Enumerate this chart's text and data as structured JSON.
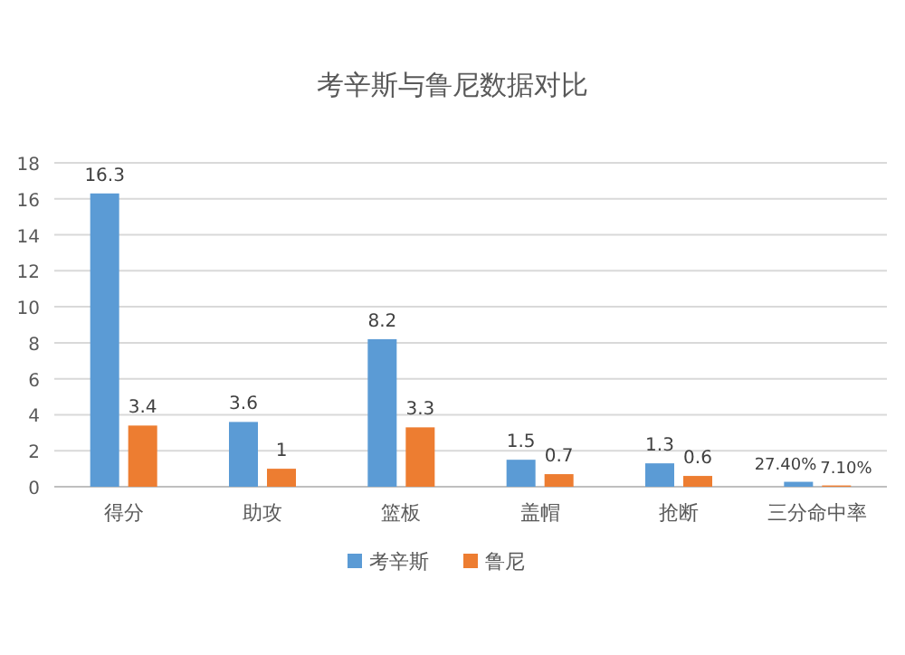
{
  "chart_data": {
    "type": "bar",
    "title": "考辛斯与鲁尼数据对比",
    "categories": [
      "得分",
      "助攻",
      "篮板",
      "盖帽",
      "抢断",
      "三分命中率"
    ],
    "series": [
      {
        "name": "考辛斯",
        "color": "#5b9bd5",
        "values": [
          16.3,
          3.6,
          8.2,
          1.5,
          1.3,
          0.274
        ],
        "value_labels": [
          "16.3",
          "3.6",
          "8.2",
          "1.5",
          "1.3",
          "27.40%"
        ]
      },
      {
        "name": "鲁尼",
        "color": "#ed7d31",
        "values": [
          3.4,
          1,
          3.3,
          0.7,
          0.6,
          0.071
        ],
        "value_labels": [
          "3.4",
          "1",
          "3.3",
          "0.7",
          "0.6",
          "7.10%"
        ]
      }
    ],
    "ylim": [
      0,
      18
    ],
    "yticks": [
      0,
      2,
      4,
      6,
      8,
      10,
      12,
      14,
      16,
      18
    ],
    "grid": "y",
    "legend": "bottom"
  }
}
